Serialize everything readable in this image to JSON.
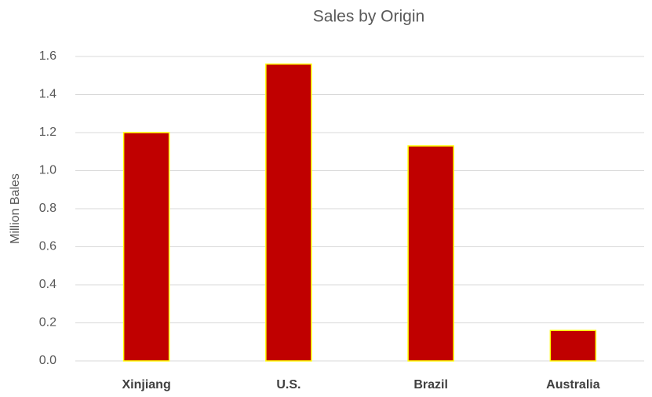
{
  "chart_data": {
    "type": "bar",
    "title": "Sales by Origin",
    "y_label": "Million Bales",
    "categories": [
      "Xinjiang",
      "U.S.",
      "Brazil",
      "Australia"
    ],
    "values": [
      1.2,
      1.56,
      1.13,
      0.16
    ],
    "color": "#c00000",
    "edge_color": "#ffff00",
    "ylim": [
      0,
      1.6
    ],
    "yticks": [
      {
        "value": 0,
        "label": "0.0"
      },
      0.2,
      0.4,
      0.6,
      0.8,
      {
        "value": 1,
        "label": "1.0"
      },
      1.2,
      1.4,
      1.6
    ],
    "grid": true
  }
}
